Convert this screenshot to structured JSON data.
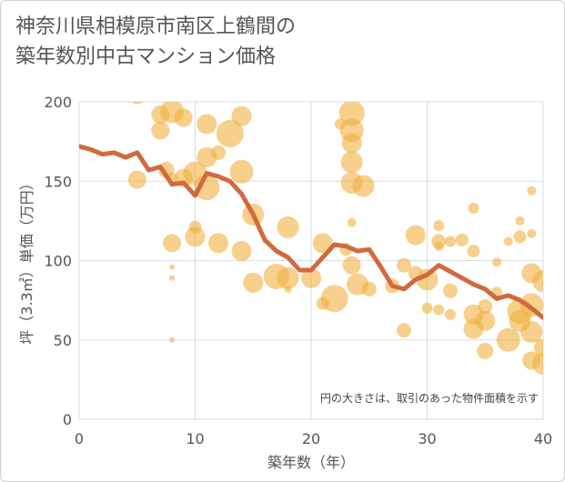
{
  "title_lines": [
    "神奈川県相模原市南区上鶴間の",
    "築年数別中古マンション価格"
  ],
  "chart_data": {
    "type": "scatter",
    "xlabel": "築年数（年）",
    "ylabel": "坪（3.3㎡）単価（万円）",
    "xlim": [
      0,
      40
    ],
    "ylim": [
      0,
      200
    ],
    "xticks": [
      "0",
      "10",
      "20",
      "30",
      "40"
    ],
    "yticks": [
      "0",
      "50",
      "100",
      "150",
      "200"
    ],
    "grid": true,
    "annotation": "円の大きさは、取引のあった物件面積を示す",
    "colors": {
      "bubble": "#f0b040",
      "line": "#d2693c",
      "grid": "#d9dde6"
    },
    "line": {
      "x": [
        0,
        1,
        2,
        3,
        4,
        5,
        6,
        7,
        8,
        9,
        10,
        11,
        12,
        13,
        14,
        15,
        16,
        17,
        18,
        19,
        20,
        21,
        22,
        23,
        24,
        25,
        26,
        27,
        28,
        29,
        30,
        31,
        32,
        33,
        34,
        35,
        36,
        37,
        38,
        39,
        40
      ],
      "y": [
        172,
        170,
        167,
        168,
        165,
        168,
        157,
        159,
        148,
        149,
        141,
        155,
        153,
        150,
        142,
        129,
        113,
        106,
        102,
        94,
        94,
        102,
        110,
        109,
        106,
        107,
        96,
        84,
        82,
        88,
        91,
        97,
        93,
        89,
        85,
        82,
        76,
        78,
        75,
        70,
        64
      ]
    },
    "points": [
      {
        "x": 5,
        "y": 205,
        "s": 11
      },
      {
        "x": 5,
        "y": 151,
        "s": 10
      },
      {
        "x": 7,
        "y": 192,
        "s": 10
      },
      {
        "x": 7,
        "y": 182,
        "s": 10
      },
      {
        "x": 7.5,
        "y": 157,
        "s": 9
      },
      {
        "x": 8,
        "y": 194,
        "s": 13
      },
      {
        "x": 8,
        "y": 152,
        "s": 6
      },
      {
        "x": 8,
        "y": 111,
        "s": 10
      },
      {
        "x": 8,
        "y": 96,
        "s": 3
      },
      {
        "x": 8,
        "y": 89,
        "s": 3
      },
      {
        "x": 8,
        "y": 50,
        "s": 3
      },
      {
        "x": 9,
        "y": 190,
        "s": 10
      },
      {
        "x": 9,
        "y": 152,
        "s": 10
      },
      {
        "x": 10,
        "y": 155,
        "s": 13
      },
      {
        "x": 10,
        "y": 115,
        "s": 11
      },
      {
        "x": 10,
        "y": 121,
        "s": 7
      },
      {
        "x": 11,
        "y": 186,
        "s": 11
      },
      {
        "x": 11,
        "y": 165,
        "s": 11
      },
      {
        "x": 11,
        "y": 146,
        "s": 14
      },
      {
        "x": 12,
        "y": 168,
        "s": 8
      },
      {
        "x": 12,
        "y": 111,
        "s": 11
      },
      {
        "x": 13,
        "y": 180,
        "s": 15
      },
      {
        "x": 14,
        "y": 191,
        "s": 11
      },
      {
        "x": 14,
        "y": 156,
        "s": 13
      },
      {
        "x": 14,
        "y": 106,
        "s": 11
      },
      {
        "x": 15,
        "y": 129,
        "s": 12
      },
      {
        "x": 15,
        "y": 86,
        "s": 11
      },
      {
        "x": 17,
        "y": 90,
        "s": 14
      },
      {
        "x": 18,
        "y": 121,
        "s": 12
      },
      {
        "x": 18,
        "y": 89,
        "s": 12
      },
      {
        "x": 18,
        "y": 82,
        "s": 4
      },
      {
        "x": 20,
        "y": 89,
        "s": 11
      },
      {
        "x": 21,
        "y": 111,
        "s": 11
      },
      {
        "x": 21,
        "y": 73,
        "s": 7
      },
      {
        "x": 22,
        "y": 76,
        "s": 15
      },
      {
        "x": 22.5,
        "y": 186,
        "s": 6
      },
      {
        "x": 23,
        "y": 107,
        "s": 7
      },
      {
        "x": 23.5,
        "y": 193,
        "s": 14
      },
      {
        "x": 23.5,
        "y": 182,
        "s": 13
      },
      {
        "x": 23.5,
        "y": 174,
        "s": 11
      },
      {
        "x": 23.5,
        "y": 162,
        "s": 12
      },
      {
        "x": 23.5,
        "y": 149,
        "s": 12
      },
      {
        "x": 23.5,
        "y": 124,
        "s": 5
      },
      {
        "x": 23.5,
        "y": 97,
        "s": 10
      },
      {
        "x": 24,
        "y": 85,
        "s": 12
      },
      {
        "x": 24.5,
        "y": 147,
        "s": 12
      },
      {
        "x": 25,
        "y": 82,
        "s": 8
      },
      {
        "x": 27,
        "y": 84,
        "s": 8
      },
      {
        "x": 28,
        "y": 97,
        "s": 8
      },
      {
        "x": 28,
        "y": 56,
        "s": 8
      },
      {
        "x": 29,
        "y": 116,
        "s": 11
      },
      {
        "x": 29,
        "y": 92,
        "s": 8
      },
      {
        "x": 30,
        "y": 88,
        "s": 12
      },
      {
        "x": 30,
        "y": 70,
        "s": 6
      },
      {
        "x": 31,
        "y": 122,
        "s": 6
      },
      {
        "x": 31,
        "y": 112,
        "s": 8
      },
      {
        "x": 31,
        "y": 109,
        "s": 5
      },
      {
        "x": 31,
        "y": 69,
        "s": 6
      },
      {
        "x": 32,
        "y": 112,
        "s": 6
      },
      {
        "x": 32,
        "y": 81,
        "s": 8
      },
      {
        "x": 32,
        "y": 66,
        "s": 6
      },
      {
        "x": 33,
        "y": 113,
        "s": 7
      },
      {
        "x": 34,
        "y": 133,
        "s": 6
      },
      {
        "x": 34,
        "y": 106,
        "s": 7
      },
      {
        "x": 34,
        "y": 66,
        "s": 11
      },
      {
        "x": 34,
        "y": 57,
        "s": 11
      },
      {
        "x": 35,
        "y": 71,
        "s": 8
      },
      {
        "x": 35,
        "y": 62,
        "s": 11
      },
      {
        "x": 35,
        "y": 43,
        "s": 9
      },
      {
        "x": 36,
        "y": 99,
        "s": 5
      },
      {
        "x": 36,
        "y": 80,
        "s": 6
      },
      {
        "x": 37,
        "y": 112,
        "s": 5
      },
      {
        "x": 37,
        "y": 50,
        "s": 13
      },
      {
        "x": 38,
        "y": 125,
        "s": 5
      },
      {
        "x": 38,
        "y": 115,
        "s": 7
      },
      {
        "x": 38,
        "y": 68,
        "s": 14
      },
      {
        "x": 38,
        "y": 62,
        "s": 12
      },
      {
        "x": 39,
        "y": 144,
        "s": 5
      },
      {
        "x": 39,
        "y": 117,
        "s": 5
      },
      {
        "x": 39,
        "y": 92,
        "s": 11
      },
      {
        "x": 39,
        "y": 72,
        "s": 13
      },
      {
        "x": 39,
        "y": 55,
        "s": 12
      },
      {
        "x": 39,
        "y": 37,
        "s": 10
      },
      {
        "x": 40,
        "y": 87,
        "s": 12
      },
      {
        "x": 40,
        "y": 45,
        "s": 10
      },
      {
        "x": 40,
        "y": 35,
        "s": 12
      }
    ]
  }
}
